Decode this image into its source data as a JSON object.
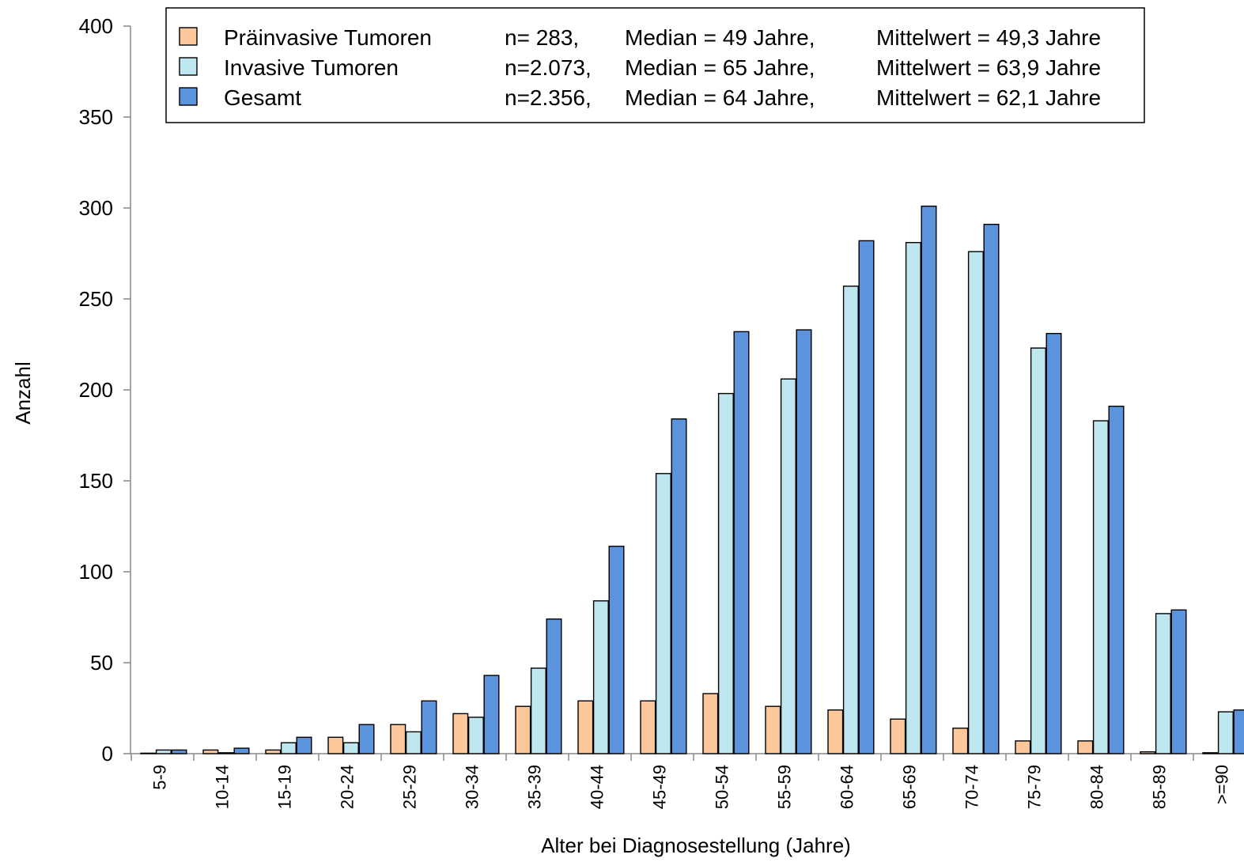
{
  "chart_data": {
    "type": "bar",
    "xlabel": "Alter bei Diagnosestellung (Jahre)",
    "ylabel": "Anzahl",
    "ylim": [
      0,
      400
    ],
    "yticks": [
      0,
      50,
      100,
      150,
      200,
      250,
      300,
      350,
      400
    ],
    "grid": false,
    "legend_position": "top",
    "categories": [
      "5-9",
      "10-14",
      "15-19",
      "20-24",
      "25-29",
      "30-34",
      "35-39",
      "40-44",
      "45-49",
      "50-54",
      "55-59",
      "60-64",
      "65-69",
      "70-74",
      "75-79",
      "80-84",
      "85-89",
      ">=90"
    ],
    "series": [
      {
        "name": "Präinvasive Tumoren",
        "n": "n=  283,",
        "median": "Median = 49 Jahre,",
        "mean": "Mittelwert = 49,3 Jahre",
        "color": "#FCC89B",
        "values": [
          0,
          2,
          2,
          9,
          16,
          22,
          26,
          29,
          29,
          33,
          26,
          24,
          19,
          14,
          7,
          7,
          1,
          0.5
        ]
      },
      {
        "name": "Invasive Tumoren",
        "n": "n=2.073,",
        "median": "Median = 65 Jahre,",
        "mean": "Mittelwert = 63,9 Jahre",
        "color": "#BEE7EF",
        "values": [
          2,
          0.5,
          6,
          6,
          12,
          20,
          47,
          84,
          154,
          198,
          206,
          257,
          281,
          276,
          223,
          183,
          77,
          23
        ]
      },
      {
        "name": "Gesamt",
        "n": "n=2.356,",
        "median": "Median = 64 Jahre,",
        "mean": "Mittelwert = 62,1 Jahre",
        "color": "#5B93DC",
        "values": [
          2,
          3,
          9,
          16,
          29,
          43,
          74,
          114,
          184,
          232,
          233,
          282,
          301,
          291,
          231,
          191,
          79,
          24
        ]
      }
    ]
  }
}
